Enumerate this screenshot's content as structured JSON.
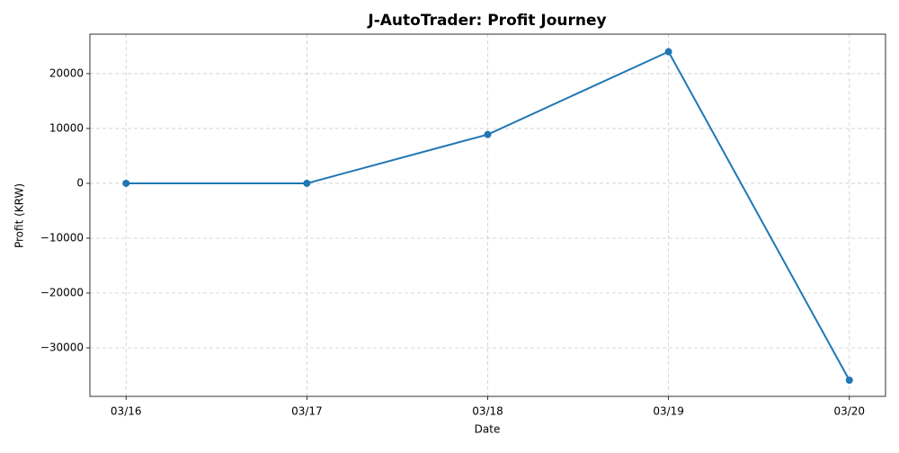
{
  "chart_data": {
    "type": "line",
    "title": "J-AutoTrader: Profit Journey",
    "x_label": "Date",
    "y_label": "Profit (KRW)",
    "categories": [
      "03/16",
      "03/17",
      "03/18",
      "03/19",
      "03/20"
    ],
    "values": [
      0,
      0,
      8900,
      24000,
      -35900
    ],
    "color": "#1f77b4",
    "ylim": [
      -38850,
      27200
    ],
    "yticks": [
      {
        "value": -30000,
        "label": "−30000"
      },
      {
        "value": -20000,
        "label": "−20000"
      },
      {
        "value": -10000,
        "label": "−10000"
      },
      0,
      10000,
      20000
    ],
    "grid": true
  }
}
